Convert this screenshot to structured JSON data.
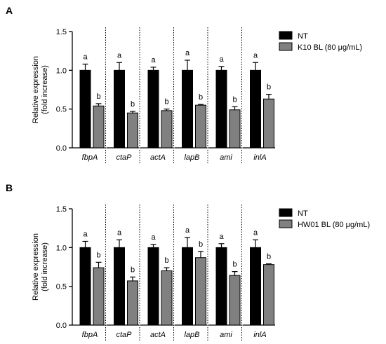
{
  "chart_data": [
    {
      "type": "bar",
      "panel": "A",
      "ylabel_line1": "Relative expression",
      "ylabel_line2": "(fold increase)",
      "ylim": [
        0,
        1.5
      ],
      "yticks": [
        "0.0",
        "0.5",
        "1.0",
        "1.5"
      ],
      "categories": [
        "fbpA",
        "ctaP",
        "actA",
        "lapB",
        "ami",
        "inlA"
      ],
      "legend_position": "top-right",
      "series": [
        {
          "name": "NT",
          "color": "#000000",
          "values": [
            1.0,
            1.0,
            1.0,
            1.0,
            1.0,
            1.0
          ],
          "errors": [
            0.08,
            0.1,
            0.04,
            0.13,
            0.05,
            0.1
          ],
          "labels": [
            "a",
            "a",
            "a",
            "a",
            "a",
            "a"
          ]
        },
        {
          "name": "K10 BL (80 μg/mL)",
          "color": "#808080",
          "values": [
            0.54,
            0.45,
            0.48,
            0.55,
            0.49,
            0.63
          ],
          "errors": [
            0.03,
            0.02,
            0.02,
            0.01,
            0.04,
            0.06
          ],
          "labels": [
            "b",
            "b",
            "b",
            "b",
            "b",
            "b"
          ]
        }
      ]
    },
    {
      "type": "bar",
      "panel": "B",
      "ylabel_line1": "Relative expression",
      "ylabel_line2": "(fold increase)",
      "ylim": [
        0,
        1.5
      ],
      "yticks": [
        "0.0",
        "0.5",
        "1.0",
        "1.5"
      ],
      "categories": [
        "fbpA",
        "ctaP",
        "actA",
        "lapB",
        "ami",
        "inlA"
      ],
      "legend_position": "top-right",
      "series": [
        {
          "name": "NT",
          "color": "#000000",
          "values": [
            1.0,
            1.0,
            1.0,
            1.0,
            1.0,
            1.0
          ],
          "errors": [
            0.08,
            0.1,
            0.04,
            0.13,
            0.05,
            0.1
          ],
          "labels": [
            "a",
            "a",
            "a",
            "a",
            "a",
            "a"
          ]
        },
        {
          "name": "HW01 BL (80 μg/mL)",
          "color": "#808080",
          "values": [
            0.74,
            0.57,
            0.7,
            0.87,
            0.64,
            0.78
          ],
          "errors": [
            0.07,
            0.05,
            0.04,
            0.08,
            0.05,
            0.01
          ],
          "labels": [
            "b",
            "b",
            "b",
            "b",
            "b",
            "b"
          ]
        }
      ]
    }
  ]
}
